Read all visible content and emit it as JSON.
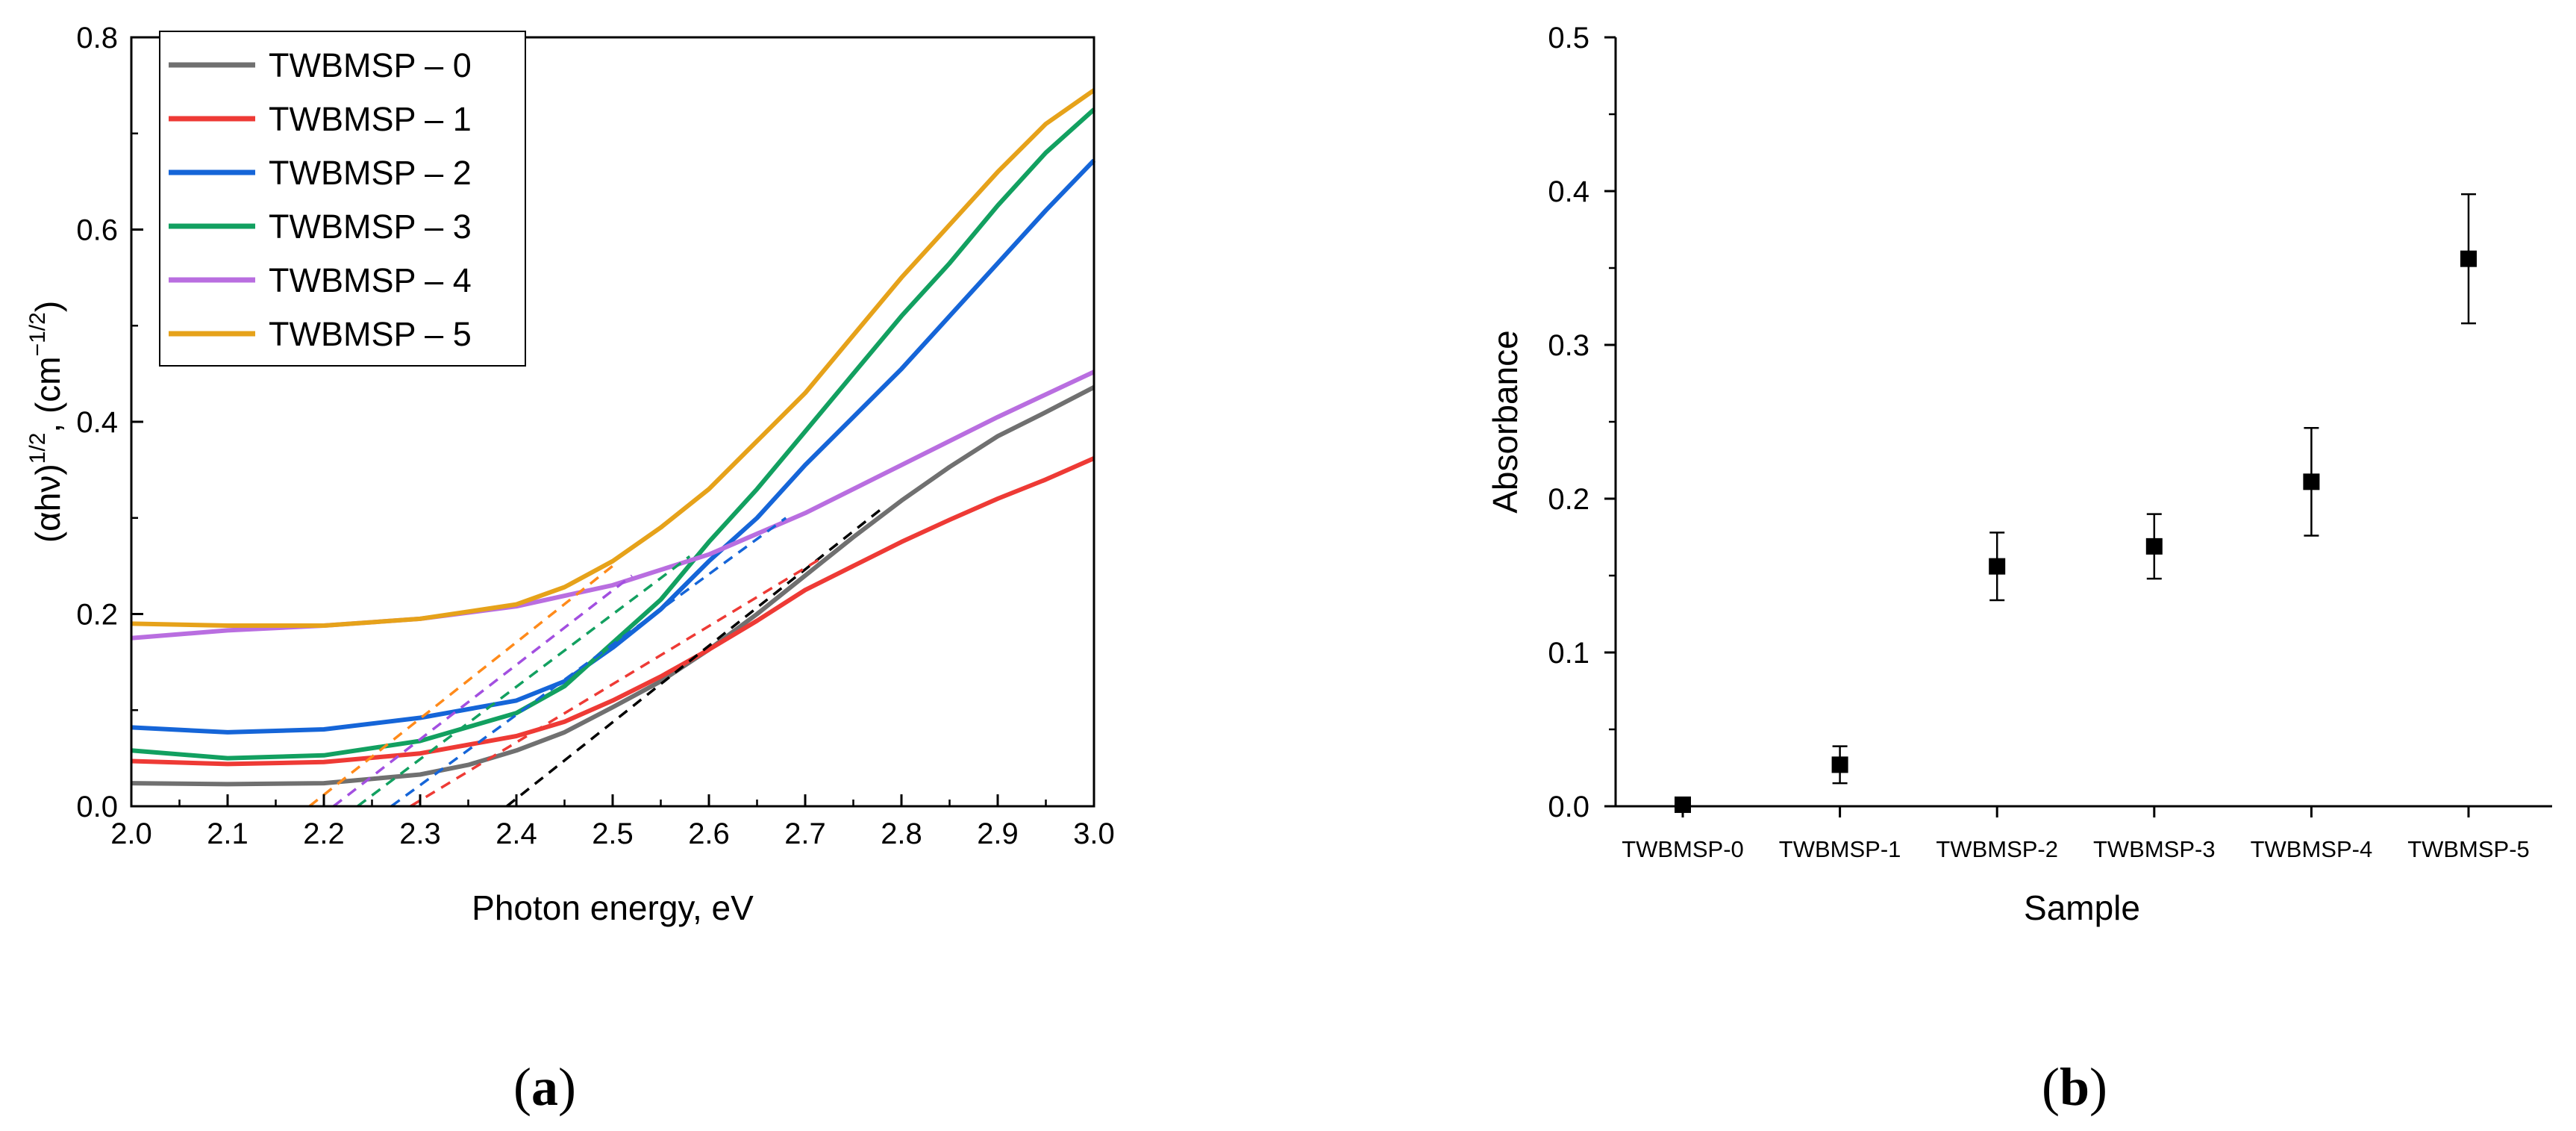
{
  "chart_data": [
    {
      "type": "line",
      "caption": "a",
      "xlabel": "Photon energy, eV",
      "ylabel_base": "(αhν)",
      "ylabel_sup1": "1/2",
      "ylabel_mid": ", (cm",
      "ylabel_sup2": "−1/2",
      "ylabel_end": ")",
      "xlim": [
        2.0,
        3.0
      ],
      "ylim": [
        0.0,
        0.8
      ],
      "xticks": [
        "2.0",
        "2.1",
        "2.2",
        "2.3",
        "2.4",
        "2.5",
        "2.6",
        "2.7",
        "2.8",
        "2.9",
        "3.0"
      ],
      "yticks": [
        "0.0",
        "0.2",
        "0.4",
        "0.6",
        "0.8"
      ],
      "legend_position": "top-left",
      "series": [
        {
          "name": "TWBMSP – 0",
          "color": "#707070",
          "x": [
            2.0,
            2.1,
            2.2,
            2.3,
            2.35,
            2.4,
            2.45,
            2.5,
            2.55,
            2.6,
            2.65,
            2.7,
            2.75,
            2.8,
            2.85,
            2.9,
            2.95,
            3.0
          ],
          "y": [
            0.024,
            0.023,
            0.024,
            0.033,
            0.043,
            0.058,
            0.077,
            0.103,
            0.13,
            0.163,
            0.2,
            0.24,
            0.28,
            0.318,
            0.353,
            0.385,
            0.41,
            0.436
          ],
          "fit_line": {
            "x": [
              2.39,
              2.78
            ],
            "y": [
              0.0,
              0.31
            ],
            "color": "#000000"
          }
        },
        {
          "name": "TWBMSP – 1",
          "color": "#ee3a35",
          "x": [
            2.0,
            2.1,
            2.2,
            2.3,
            2.4,
            2.45,
            2.5,
            2.55,
            2.6,
            2.65,
            2.7,
            2.75,
            2.8,
            2.85,
            2.9,
            2.95,
            3.0
          ],
          "y": [
            0.047,
            0.044,
            0.046,
            0.055,
            0.073,
            0.088,
            0.11,
            0.135,
            0.163,
            0.193,
            0.225,
            0.25,
            0.275,
            0.298,
            0.32,
            0.34,
            0.362
          ],
          "fit_line": {
            "x": [
              2.29,
              2.72
            ],
            "y": [
              0.0,
              0.26
            ],
            "color": "#ee3a35"
          }
        },
        {
          "name": "TWBMSP – 2",
          "color": "#1565d8",
          "x": [
            2.0,
            2.1,
            2.2,
            2.3,
            2.4,
            2.45,
            2.5,
            2.55,
            2.6,
            2.65,
            2.7,
            2.75,
            2.8,
            2.85,
            2.9,
            2.95,
            3.0
          ],
          "y": [
            0.082,
            0.077,
            0.08,
            0.092,
            0.11,
            0.13,
            0.165,
            0.205,
            0.255,
            0.3,
            0.355,
            0.405,
            0.455,
            0.51,
            0.565,
            0.62,
            0.672
          ],
          "fit_line": {
            "x": [
              2.27,
              2.68
            ],
            "y": [
              0.0,
              0.3
            ],
            "color": "#1565d8"
          }
        },
        {
          "name": "TWBMSP – 3",
          "color": "#12a060",
          "x": [
            2.0,
            2.1,
            2.2,
            2.3,
            2.4,
            2.45,
            2.5,
            2.55,
            2.6,
            2.65,
            2.7,
            2.75,
            2.8,
            2.85,
            2.9,
            2.95,
            3.0
          ],
          "y": [
            0.058,
            0.05,
            0.053,
            0.068,
            0.097,
            0.125,
            0.17,
            0.215,
            0.275,
            0.33,
            0.39,
            0.45,
            0.51,
            0.565,
            0.625,
            0.68,
            0.725
          ],
          "fit_line": {
            "x": [
              2.235,
              2.58
            ],
            "y": [
              0.0,
              0.26
            ],
            "color": "#12a060"
          }
        },
        {
          "name": "TWBMSP – 4",
          "color": "#b96ee0",
          "x": [
            2.0,
            2.1,
            2.2,
            2.3,
            2.4,
            2.5,
            2.6,
            2.7,
            2.8,
            2.9,
            3.0
          ],
          "y": [
            0.175,
            0.183,
            0.188,
            0.195,
            0.208,
            0.23,
            0.262,
            0.305,
            0.355,
            0.405,
            0.452
          ],
          "fit_line": {
            "x": [
              2.21,
              2.52
            ],
            "y": [
              0.0,
              0.24
            ],
            "color": "#a24fe0"
          }
        },
        {
          "name": "TWBMSP – 5",
          "color": "#e6a21a",
          "x": [
            2.0,
            2.1,
            2.2,
            2.3,
            2.4,
            2.45,
            2.5,
            2.55,
            2.6,
            2.65,
            2.7,
            2.75,
            2.8,
            2.85,
            2.9,
            2.95,
            3.0
          ],
          "y": [
            0.19,
            0.188,
            0.188,
            0.195,
            0.21,
            0.228,
            0.255,
            0.29,
            0.33,
            0.38,
            0.43,
            0.49,
            0.55,
            0.605,
            0.66,
            0.71,
            0.745
          ],
          "fit_line": {
            "x": [
              2.185,
              2.5
            ],
            "y": [
              0.0,
              0.25
            ],
            "color": "#ff8a1a"
          }
        }
      ]
    },
    {
      "type": "scatter",
      "caption": "b",
      "xlabel": "Sample",
      "ylabel": "Absorbance",
      "categories": [
        "TWBMSP-0",
        "TWBMSP-1",
        "TWBMSP-2",
        "TWBMSP-3",
        "TWBMSP-4",
        "TWBMSP-5"
      ],
      "ylim": [
        0.0,
        0.5
      ],
      "yticks": [
        "0.0",
        "0.1",
        "0.2",
        "0.3",
        "0.4",
        "0.5"
      ],
      "values": [
        0.001,
        0.027,
        0.156,
        0.169,
        0.211,
        0.356
      ],
      "errors": [
        0.002,
        0.012,
        0.022,
        0.021,
        0.035,
        0.042
      ],
      "marker_color": "#000000"
    }
  ]
}
